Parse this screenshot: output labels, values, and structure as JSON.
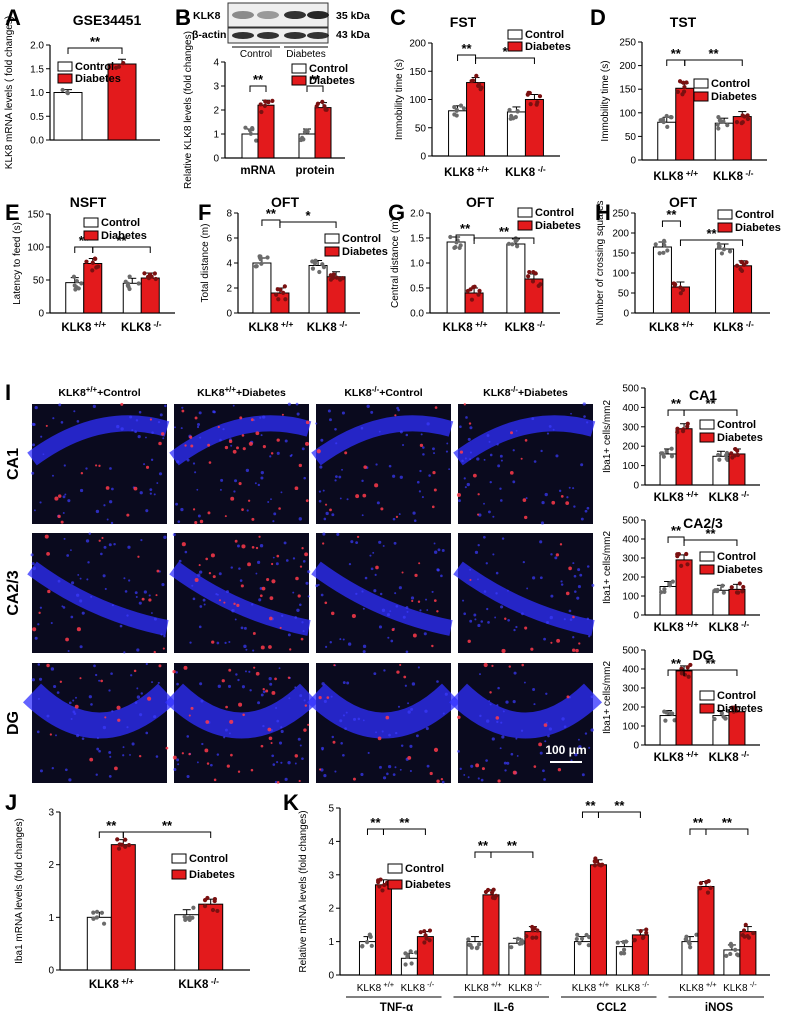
{
  "figure": {
    "panels": [
      "A",
      "B",
      "C",
      "D",
      "E",
      "F",
      "G",
      "H",
      "I",
      "J",
      "K"
    ],
    "legend": {
      "control": "Control",
      "diabetes": "Diabetes"
    },
    "colors": {
      "control": "#ffffff",
      "diabetes": "#e31a1c",
      "stroke": "#000000",
      "dot": "#6b6b6b",
      "dot_red": "#7a1010"
    },
    "groups": {
      "wt": "KLK8+/+",
      "ko": "KLK8 -/-"
    },
    "blot": {
      "klk8_label": "KLK8",
      "actin_label": "β-actin",
      "kda_klk8": "35 kDa",
      "kda_actin": "43 kDa",
      "lane_control": "Control",
      "lane_diabetes": "Diabetes"
    },
    "micrographs": {
      "columns": [
        "KLK8+/++Control",
        "KLK8+/++Diabetes",
        "KLK8 -/-+Control",
        "KLK8 -/-+Diabetes"
      ],
      "rows": [
        "CA1",
        "CA2/3",
        "DG"
      ],
      "scale_bar": "100 μm"
    }
  },
  "chart_data": [
    {
      "id": "A",
      "type": "bar",
      "title": "GSE34451",
      "ylabel": "KLK8 mRNA levels ( fold changes)",
      "ylim": [
        0,
        2
      ],
      "yticks": [
        0,
        0.5,
        1.0,
        1.5,
        2.0
      ],
      "categories": [
        "Control",
        "Diabetes"
      ],
      "values": [
        1.0,
        1.6
      ],
      "errors": [
        0.06,
        0.1
      ],
      "sig": [
        {
          "label": "**",
          "from": 0,
          "to": 1
        }
      ]
    },
    {
      "id": "B",
      "type": "bar",
      "ylabel": "Relative KLK8 levels (fold changes)",
      "ylim": [
        0,
        4
      ],
      "yticks": [
        0,
        1,
        2,
        3,
        4
      ],
      "categories": [
        "mRNA",
        "protein"
      ],
      "series": [
        {
          "name": "Control",
          "values": [
            1.0,
            1.0
          ]
        },
        {
          "name": "Diabetes",
          "values": [
            2.2,
            2.1
          ]
        }
      ],
      "sig": [
        {
          "label": "**",
          "group": 0
        },
        {
          "label": "**",
          "group": 1
        }
      ]
    },
    {
      "id": "C",
      "type": "bar",
      "title": "FST",
      "ylabel": "Immobility time (s)",
      "ylim": [
        0,
        200
      ],
      "yticks": [
        0,
        50,
        100,
        150,
        200
      ],
      "categories": [
        "KLK8+/+",
        "KLK8 -/-"
      ],
      "series": [
        {
          "name": "Control",
          "values": [
            80,
            78
          ]
        },
        {
          "name": "Diabetes",
          "values": [
            130,
            100
          ]
        }
      ],
      "sig": [
        {
          "label": "**"
        },
        {
          "label": "*"
        }
      ]
    },
    {
      "id": "D",
      "type": "bar",
      "title": "TST",
      "ylabel": "Immobility time (s)",
      "ylim": [
        0,
        250
      ],
      "yticks": [
        0,
        50,
        100,
        150,
        200,
        250
      ],
      "categories": [
        "KLK8+/+",
        "KLK8 -/-"
      ],
      "series": [
        {
          "name": "Control",
          "values": [
            80,
            78
          ]
        },
        {
          "name": "Diabetes",
          "values": [
            152,
            92
          ]
        }
      ],
      "sig": [
        {
          "label": "**"
        },
        {
          "label": "**"
        }
      ]
    },
    {
      "id": "E",
      "type": "bar",
      "title": "NSFT",
      "ylabel": "Latency to feed (s)",
      "ylim": [
        0,
        150
      ],
      "yticks": [
        0,
        50,
        100,
        150
      ],
      "categories": [
        "KLK8+/+",
        "KLK8 -/-"
      ],
      "series": [
        {
          "name": "Control",
          "values": [
            46,
            45
          ]
        },
        {
          "name": "Diabetes",
          "values": [
            75,
            53
          ]
        }
      ],
      "sig": [
        {
          "label": "**"
        },
        {
          "label": "**"
        }
      ]
    },
    {
      "id": "F",
      "type": "bar",
      "title": "OFT",
      "ylabel": "Total distance (m)",
      "ylim": [
        0,
        8
      ],
      "yticks": [
        0,
        2,
        4,
        6,
        8
      ],
      "categories": [
        "KLK8+/+",
        "KLK8 -/-"
      ],
      "series": [
        {
          "name": "Control",
          "values": [
            4.0,
            3.8
          ]
        },
        {
          "name": "Diabetes",
          "values": [
            1.6,
            2.9
          ]
        }
      ],
      "sig": [
        {
          "label": "**"
        },
        {
          "label": "*"
        }
      ]
    },
    {
      "id": "G",
      "type": "bar",
      "title": "OFT",
      "ylabel": "Central distance (m)",
      "ylim": [
        0,
        2.0
      ],
      "yticks": [
        0,
        0.5,
        1.0,
        1.5,
        2.0
      ],
      "categories": [
        "KLK8+/+",
        "KLK8 -/-"
      ],
      "series": [
        {
          "name": "Control",
          "values": [
            1.42,
            1.38
          ]
        },
        {
          "name": "Diabetes",
          "values": [
            0.4,
            0.68
          ]
        }
      ],
      "sig": [
        {
          "label": "**"
        },
        {
          "label": "**"
        }
      ]
    },
    {
      "id": "H",
      "type": "bar",
      "title": "OFT",
      "ylabel": "Number of crossing squares",
      "ylim": [
        0,
        250
      ],
      "yticks": [
        0,
        50,
        100,
        150,
        200,
        250
      ],
      "categories": [
        "KLK8+/+",
        "KLK8 -/-"
      ],
      "series": [
        {
          "name": "Control",
          "values": [
            165,
            160
          ]
        },
        {
          "name": "Diabetes",
          "values": [
            65,
            118
          ]
        }
      ],
      "sig": [
        {
          "label": "**"
        },
        {
          "label": "**"
        }
      ]
    },
    {
      "id": "I-CA1",
      "type": "bar",
      "title": "CA1",
      "ylabel": "Iba1+ cells/mm2",
      "ylim": [
        0,
        500
      ],
      "yticks": [
        0,
        100,
        200,
        300,
        400,
        500
      ],
      "categories": [
        "KLK8+/+",
        "KLK8 -/-"
      ],
      "series": [
        {
          "name": "Control",
          "values": [
            160,
            148
          ]
        },
        {
          "name": "Diabetes",
          "values": [
            290,
            160
          ]
        }
      ],
      "sig": [
        {
          "label": "**"
        },
        {
          "label": "**"
        }
      ]
    },
    {
      "id": "I-CA23",
      "type": "bar",
      "title": "CA2/3",
      "ylabel": "Iba1+ cells/mm2",
      "ylim": [
        0,
        500
      ],
      "yticks": [
        0,
        100,
        200,
        300,
        400,
        500
      ],
      "categories": [
        "KLK8+/+",
        "KLK8 -/-"
      ],
      "series": [
        {
          "name": "Control",
          "values": [
            150,
            130
          ]
        },
        {
          "name": "Diabetes",
          "values": [
            290,
            135
          ]
        }
      ],
      "sig": [
        {
          "label": "**"
        },
        {
          "label": "**"
        }
      ]
    },
    {
      "id": "I-DG",
      "type": "bar",
      "title": "DG",
      "ylabel": "Iba1+ cells/mm2",
      "ylim": [
        0,
        500
      ],
      "yticks": [
        0,
        100,
        200,
        300,
        400,
        500
      ],
      "categories": [
        "KLK8+/+",
        "KLK8 -/-"
      ],
      "series": [
        {
          "name": "Control",
          "values": [
            155,
            155
          ]
        },
        {
          "name": "Diabetes",
          "values": [
            390,
            175
          ]
        }
      ],
      "sig": [
        {
          "label": "**"
        },
        {
          "label": "**"
        }
      ]
    },
    {
      "id": "J",
      "type": "bar",
      "ylabel": "Iba1 mRNA levels (fold changes)",
      "ylim": [
        0,
        3
      ],
      "yticks": [
        0,
        1,
        2,
        3
      ],
      "categories": [
        "KLK8+/+",
        "KLK8 -/-"
      ],
      "series": [
        {
          "name": "Control",
          "values": [
            1.0,
            1.05
          ]
        },
        {
          "name": "Diabetes",
          "values": [
            2.38,
            1.25
          ]
        }
      ],
      "sig": [
        {
          "label": "**"
        },
        {
          "label": "**"
        }
      ]
    },
    {
      "id": "K",
      "type": "bar",
      "ylabel": "Relative mRNA levels (fold changes)",
      "ylim": [
        0,
        5
      ],
      "yticks": [
        0,
        1,
        2,
        3,
        4,
        5
      ],
      "groups": [
        "TNF-α",
        "IL-6",
        "CCL2",
        "iNOS"
      ],
      "subcategories": [
        "KLK8+/+",
        "KLK8 -/-"
      ],
      "series": [
        {
          "name": "Control",
          "values": [
            [
              1.0,
              0.5
            ],
            [
              1.0,
              0.95
            ],
            [
              1.0,
              0.85
            ],
            [
              1.0,
              0.75
            ]
          ]
        },
        {
          "name": "Diabetes",
          "values": [
            [
              2.7,
              1.15
            ],
            [
              2.4,
              1.3
            ],
            [
              3.3,
              1.2
            ],
            [
              2.65,
              1.3
            ]
          ]
        }
      ],
      "sig": [
        {
          "label": "**"
        },
        {
          "label": "**"
        }
      ]
    }
  ]
}
